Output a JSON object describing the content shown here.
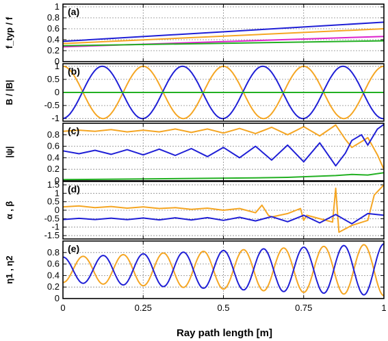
{
  "chart_data": {
    "type": "line",
    "xlabel": "Ray path length [m]",
    "xlim": [
      0,
      1
    ],
    "xticks": [
      "0",
      "0.25",
      "0.5",
      "0.75",
      "1"
    ],
    "grid": true,
    "colors": {
      "orange": "#f5a623",
      "blue": "#1f1fd6",
      "green": "#22b022",
      "magenta": "#dd22cc"
    },
    "panels": [
      {
        "label": "(a)",
        "ylabel": "f_typ / f",
        "ylim": [
          0,
          1.05
        ],
        "yticks": [
          "0",
          "0.2",
          "0.4",
          "0.6",
          "0.8",
          "1"
        ],
        "series": [
          {
            "color": "blue",
            "kind": "linear",
            "x": [
              0,
              1
            ],
            "y": [
              0.37,
              0.72
            ]
          },
          {
            "color": "orange",
            "kind": "linear",
            "x": [
              0,
              1
            ],
            "y": [
              0.33,
              0.6
            ]
          },
          {
            "color": "magenta",
            "kind": "linear",
            "x": [
              0,
              1
            ],
            "y": [
              0.27,
              0.46
            ]
          },
          {
            "color": "green",
            "kind": "linear",
            "x": [
              0,
              1
            ],
            "y": [
              0.29,
              0.38
            ]
          }
        ]
      },
      {
        "label": "(b)",
        "ylabel": "B / |B|",
        "ylim": [
          -1.1,
          1.1
        ],
        "yticks": [
          "-1",
          "-0.5",
          "0",
          "0.5",
          "1"
        ],
        "series": [
          {
            "color": "orange",
            "kind": "cosine",
            "amplitude": 1,
            "period": 0.25,
            "phase": 0
          },
          {
            "color": "blue",
            "kind": "sine",
            "amplitude": 1,
            "period": 0.25,
            "phase": 0.06
          },
          {
            "color": "green",
            "kind": "constant",
            "y": 0
          }
        ]
      },
      {
        "label": "(c)",
        "ylabel": "|ψ|",
        "ylim": [
          0,
          1.0
        ],
        "yticks": [
          "0",
          "0.2",
          "0.4",
          "0.6",
          "0.8"
        ],
        "series": [
          {
            "color": "orange",
            "x": [
              0,
              0.05,
              0.1,
              0.15,
              0.2,
              0.25,
              0.3,
              0.35,
              0.4,
              0.45,
              0.5,
              0.55,
              0.6,
              0.65,
              0.7,
              0.75,
              0.8,
              0.85,
              0.88,
              0.9,
              0.93,
              0.95,
              0.98,
              1.0
            ],
            "y": [
              0.86,
              0.88,
              0.86,
              0.89,
              0.85,
              0.88,
              0.85,
              0.9,
              0.84,
              0.9,
              0.83,
              0.91,
              0.82,
              0.93,
              0.8,
              0.94,
              0.78,
              0.97,
              0.72,
              0.58,
              0.68,
              0.75,
              0.45,
              0.2
            ]
          },
          {
            "color": "blue",
            "x": [
              0,
              0.05,
              0.1,
              0.15,
              0.2,
              0.25,
              0.3,
              0.35,
              0.4,
              0.45,
              0.5,
              0.55,
              0.6,
              0.65,
              0.7,
              0.75,
              0.8,
              0.85,
              0.88,
              0.9,
              0.93,
              0.95,
              0.98,
              1.0
            ],
            "y": [
              0.52,
              0.47,
              0.53,
              0.46,
              0.54,
              0.45,
              0.55,
              0.44,
              0.56,
              0.42,
              0.58,
              0.4,
              0.6,
              0.36,
              0.62,
              0.33,
              0.66,
              0.26,
              0.48,
              0.7,
              0.8,
              0.62,
              0.9,
              0.98
            ]
          },
          {
            "color": "green",
            "x": [
              0,
              0.2,
              0.4,
              0.6,
              0.7,
              0.8,
              0.85,
              0.9,
              0.95,
              1.0
            ],
            "y": [
              0.02,
              0.03,
              0.04,
              0.05,
              0.06,
              0.08,
              0.09,
              0.11,
              0.1,
              0.14
            ]
          }
        ]
      },
      {
        "label": "(d)",
        "ylabel": "α , β",
        "ylim": [
          -1.7,
          1.7
        ],
        "yticks": [
          "-1.5",
          "-1",
          "-0.5",
          "0",
          "0.5",
          "1",
          "1.5"
        ],
        "series": [
          {
            "color": "orange",
            "x": [
              0,
              0.05,
              0.1,
              0.15,
              0.2,
              0.25,
              0.3,
              0.35,
              0.4,
              0.45,
              0.5,
              0.55,
              0.6,
              0.62,
              0.64,
              0.65,
              0.7,
              0.74,
              0.75,
              0.76,
              0.8,
              0.84,
              0.85,
              0.86,
              0.9,
              0.95,
              0.97,
              1.0
            ],
            "y": [
              0.2,
              0.25,
              0.15,
              0.22,
              0.12,
              0.2,
              0.1,
              0.15,
              0.05,
              0.12,
              0.0,
              0.1,
              -0.15,
              0.3,
              -0.3,
              -0.4,
              -0.2,
              0.1,
              -0.6,
              -0.3,
              -0.5,
              -0.7,
              1.3,
              -1.3,
              -0.9,
              -0.6,
              0.9,
              1.5
            ]
          },
          {
            "color": "blue",
            "x": [
              0,
              0.05,
              0.1,
              0.15,
              0.2,
              0.25,
              0.3,
              0.35,
              0.4,
              0.45,
              0.5,
              0.55,
              0.6,
              0.65,
              0.7,
              0.75,
              0.8,
              0.85,
              0.9,
              0.95,
              1.0
            ],
            "y": [
              -0.55,
              -0.48,
              -0.55,
              -0.47,
              -0.56,
              -0.46,
              -0.57,
              -0.45,
              -0.58,
              -0.44,
              -0.6,
              -0.42,
              -0.63,
              -0.38,
              -0.68,
              -0.3,
              -0.75,
              -0.25,
              -0.8,
              -0.2,
              -0.3
            ]
          }
        ]
      },
      {
        "label": "(e)",
        "ylabel": "η1 , η2",
        "ylim": [
          0,
          1.0
        ],
        "yticks": [
          "0",
          "0.2",
          "0.4",
          "0.6",
          "0.8"
        ],
        "series": [
          {
            "color": "orange",
            "kind": "oscillation",
            "center": 0.5,
            "amplitude": [
              0.22,
              0.45
            ],
            "period": 0.125,
            "phase": 0.0,
            "sign": -1
          },
          {
            "color": "blue",
            "kind": "oscillation",
            "center": 0.5,
            "amplitude": [
              0.22,
              0.45
            ],
            "period": 0.125,
            "phase": 0.0,
            "sign": 1
          }
        ]
      }
    ]
  }
}
